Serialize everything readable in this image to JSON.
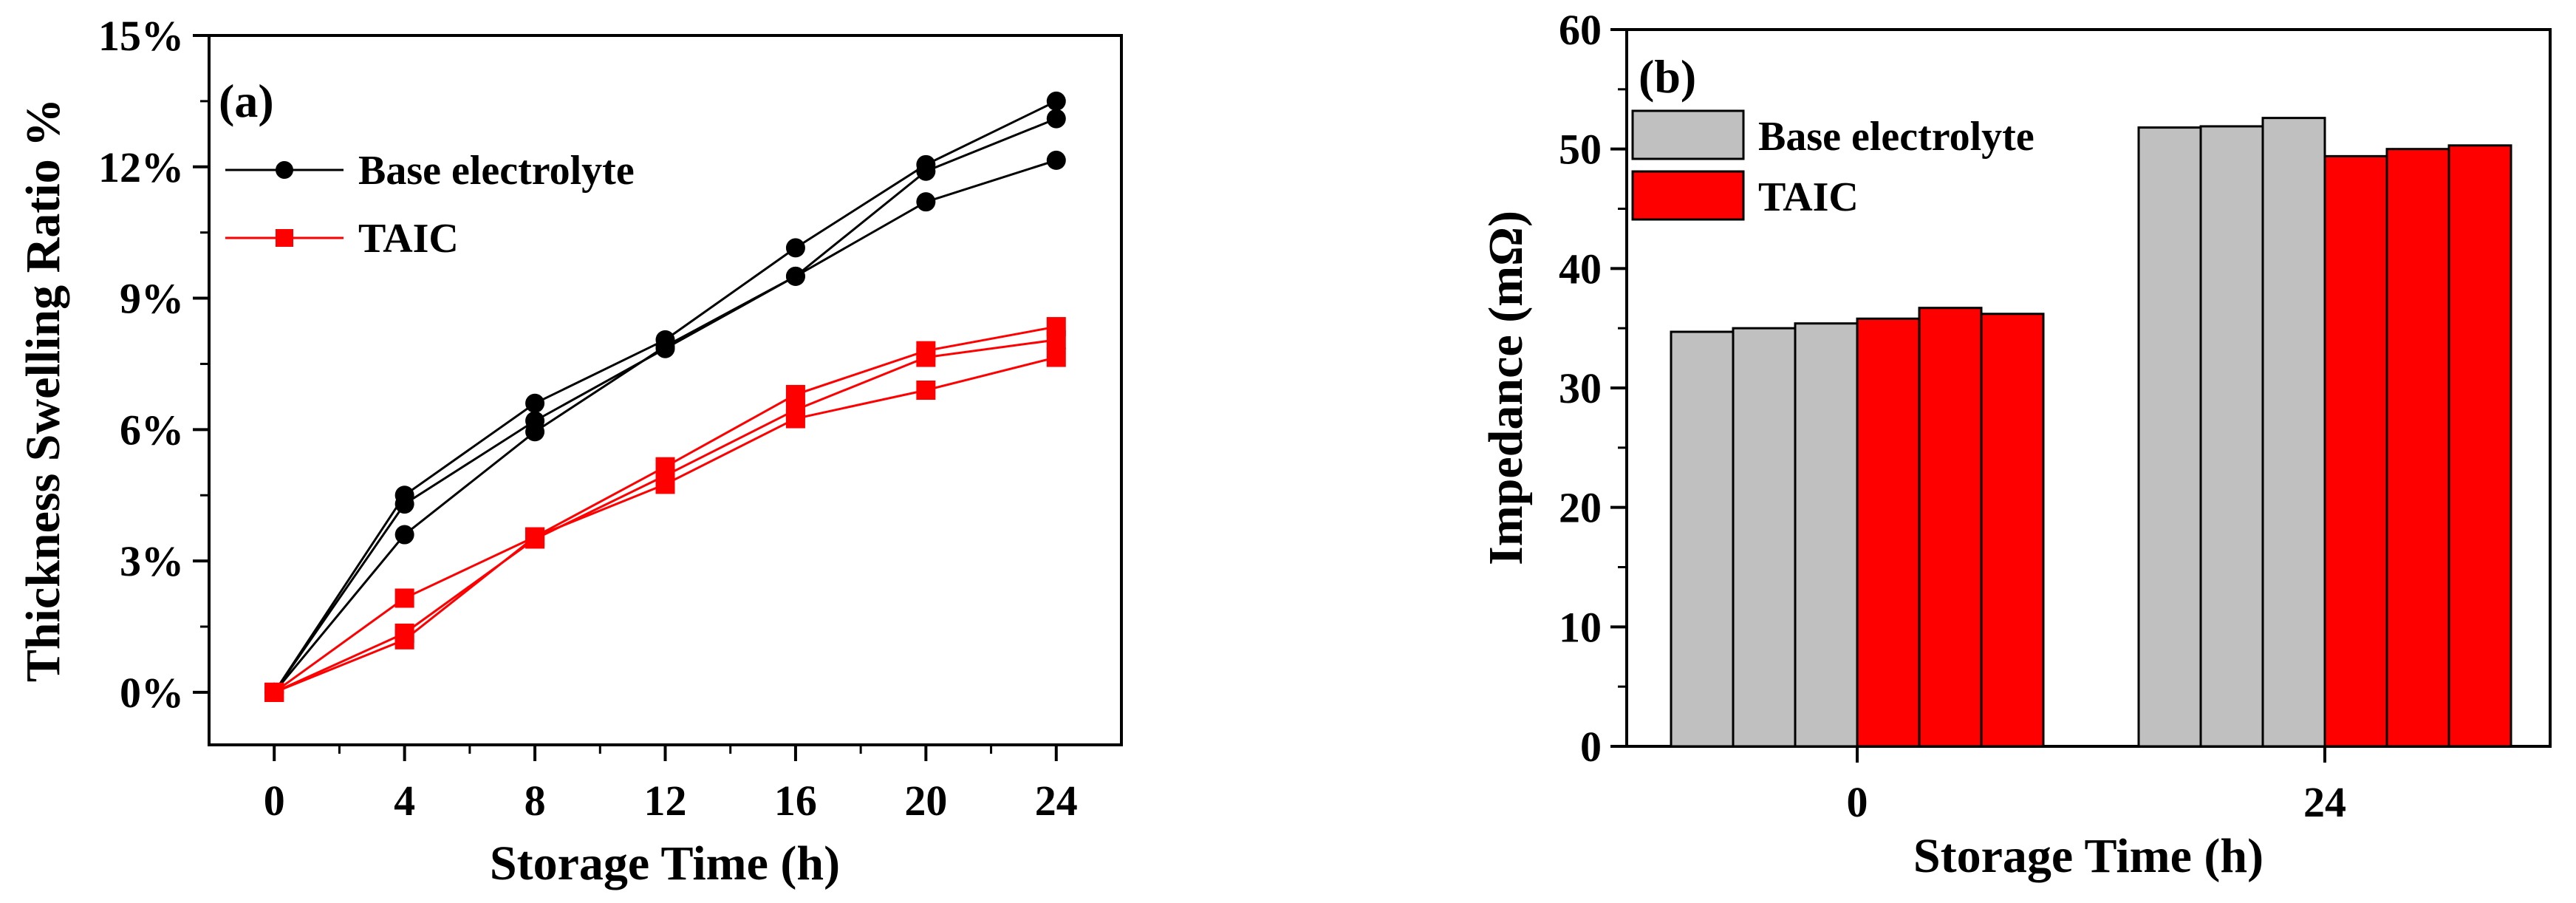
{
  "chart_data": [
    {
      "panel": "(a)",
      "type": "line",
      "xlabel": "Storage Time (h)",
      "ylabel": "Thickness Swelling Ratio %",
      "x": [
        0,
        4,
        8,
        12,
        16,
        20,
        24
      ],
      "x_ticks": [
        "0",
        "4",
        "8",
        "12",
        "16",
        "20",
        "24"
      ],
      "xlim": [
        -2,
        26
      ],
      "ylim": [
        -0.012,
        0.15
      ],
      "y_ticks": [
        0,
        0.03,
        0.06,
        0.09,
        0.12,
        0.15
      ],
      "y_tick_labels": [
        "0%",
        "3%",
        "6%",
        "9%",
        "12%",
        "15%"
      ],
      "legend": [
        "Base electrolyte",
        "TAIC"
      ],
      "legend_position": "top-left",
      "series": [
        {
          "name": "Base electrolyte",
          "group": "Base electrolyte",
          "color": "#000000",
          "marker": "circle",
          "values": [
            0.0,
            0.045,
            0.066,
            0.0805,
            0.1015,
            0.1205,
            0.135
          ]
        },
        {
          "name": "Base electrolyte",
          "group": "Base electrolyte",
          "color": "#000000",
          "marker": "circle",
          "values": [
            0.0,
            0.043,
            0.062,
            0.0785,
            0.095,
            0.119,
            0.131
          ]
        },
        {
          "name": "Base electrolyte",
          "group": "Base electrolyte",
          "color": "#000000",
          "marker": "circle",
          "values": [
            0.0,
            0.036,
            0.0595,
            0.079,
            0.095,
            0.112,
            0.1215
          ]
        },
        {
          "name": "TAIC",
          "group": "TAIC",
          "color": "#ff0000",
          "marker": "square",
          "values": [
            0.0,
            0.0215,
            0.0355,
            0.0515,
            0.068,
            0.078,
            0.0835
          ]
        },
        {
          "name": "TAIC",
          "group": "TAIC",
          "color": "#ff0000",
          "marker": "square",
          "values": [
            0.0,
            0.0135,
            0.035,
            0.0495,
            0.0645,
            0.0765,
            0.0805
          ]
        },
        {
          "name": "TAIC",
          "group": "TAIC",
          "color": "#ff0000",
          "marker": "square",
          "values": [
            0.0,
            0.012,
            0.0355,
            0.0475,
            0.0625,
            0.069,
            0.0765
          ]
        }
      ]
    },
    {
      "panel": "(b)",
      "type": "bar",
      "xlabel": "Storage Time (h)",
      "ylabel": "Impedance (mΩ)",
      "categories": [
        "0",
        "24"
      ],
      "ylim": [
        0,
        60
      ],
      "y_ticks": [
        0,
        10,
        20,
        30,
        40,
        50,
        60
      ],
      "y_tick_labels": [
        "0",
        "10",
        "20",
        "30",
        "40",
        "50",
        "60"
      ],
      "legend": [
        "Base electrolyte",
        "TAIC"
      ],
      "legend_position": "top-left",
      "series": [
        {
          "name": "Base electrolyte",
          "color": "#c0c0c0",
          "values": [
            [
              34.7,
              35.0,
              35.4
            ],
            [
              51.8,
              51.9,
              52.6
            ]
          ]
        },
        {
          "name": "TAIC",
          "color": "#ff0000",
          "values": [
            [
              35.8,
              36.7,
              36.2
            ],
            [
              49.4,
              50.0,
              50.3
            ]
          ]
        }
      ]
    }
  ]
}
